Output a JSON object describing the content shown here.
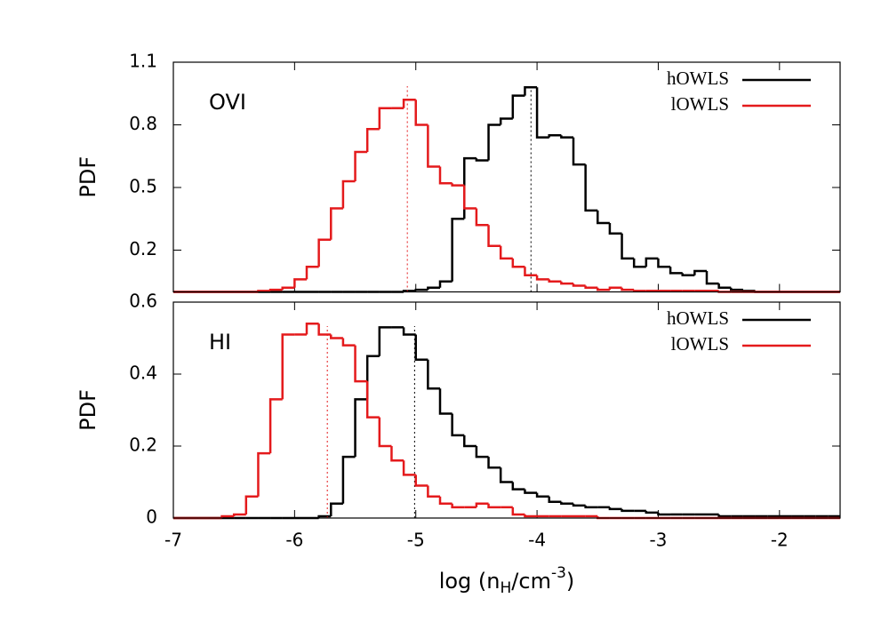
{
  "chart_data": [
    {
      "type": "histogram",
      "label": "OVI",
      "ylabel": "PDF",
      "xlim": [
        -7.0,
        -1.5
      ],
      "ylim": [
        0,
        1.1
      ],
      "yticks": [
        0.2,
        0.5,
        0.8,
        1.1
      ],
      "legend": "top right",
      "bins": [
        -7.0,
        -6.9,
        -6.8,
        -6.7,
        -6.6,
        -6.5,
        -6.4,
        -6.3,
        -6.2,
        -6.1,
        -6.0,
        -5.9,
        -5.8,
        -5.7,
        -5.6,
        -5.5,
        -5.4,
        -5.3,
        -5.2,
        -5.1,
        -5.0,
        -4.9,
        -4.8,
        -4.7,
        -4.6,
        -4.5,
        -4.4,
        -4.3,
        -4.2,
        -4.1,
        -4.0,
        -3.9,
        -3.8,
        -3.7,
        -3.6,
        -3.5,
        -3.4,
        -3.3,
        -3.2,
        -3.1,
        -3.0,
        -2.9,
        -2.8,
        -2.7,
        -2.6,
        -2.5,
        -2.4,
        -2.3,
        -2.2,
        -2.1,
        -2.0,
        -1.9,
        -1.8,
        -1.7,
        -1.6,
        -1.5
      ],
      "series": [
        {
          "name": "hOWLS",
          "color": "#000000",
          "mean": -4.05,
          "values": [
            0,
            0,
            0,
            0,
            0,
            0,
            0,
            0,
            0,
            0,
            0,
            0,
            0,
            0,
            0,
            0,
            0,
            0,
            0,
            0.005,
            0.01,
            0.02,
            0.05,
            0.35,
            0.64,
            0.63,
            0.8,
            0.83,
            0.94,
            0.98,
            0.74,
            0.75,
            0.74,
            0.61,
            0.39,
            0.33,
            0.28,
            0.16,
            0.12,
            0.16,
            0.12,
            0.09,
            0.08,
            0.1,
            0.04,
            0.02,
            0.01,
            0.005,
            0,
            0,
            0,
            0,
            0,
            0,
            0
          ]
        },
        {
          "name": "lOWLS",
          "color": "#e41a1c",
          "mean": -5.07,
          "values": [
            0,
            0,
            0,
            0,
            0,
            0,
            0,
            0.005,
            0.01,
            0.02,
            0.06,
            0.12,
            0.25,
            0.4,
            0.53,
            0.67,
            0.78,
            0.88,
            0.88,
            0.92,
            0.8,
            0.6,
            0.52,
            0.51,
            0.4,
            0.32,
            0.22,
            0.16,
            0.12,
            0.08,
            0.06,
            0.05,
            0.04,
            0.03,
            0.02,
            0.01,
            0.02,
            0.01,
            0.005,
            0.005,
            0.005,
            0.005,
            0.005,
            0.005,
            0.005,
            0,
            0,
            0,
            0,
            0,
            0,
            0,
            0,
            0,
            0
          ]
        }
      ]
    },
    {
      "type": "histogram",
      "label": "HI",
      "ylabel": "PDF",
      "xlabel": [
        "log (n",
        "H",
        "/cm",
        "-3",
        ")"
      ],
      "xlim": [
        -7.0,
        -1.5
      ],
      "xticks": [
        -7,
        -6,
        -5,
        -4,
        -3,
        -2
      ],
      "ylim": [
        0,
        0.6
      ],
      "yticks": [
        0,
        0.2,
        0.4,
        0.6
      ],
      "legend": "top right",
      "bins": [
        -7.0,
        -6.9,
        -6.8,
        -6.7,
        -6.6,
        -6.5,
        -6.4,
        -6.3,
        -6.2,
        -6.1,
        -6.0,
        -5.9,
        -5.8,
        -5.7,
        -5.6,
        -5.5,
        -5.4,
        -5.3,
        -5.2,
        -5.1,
        -5.0,
        -4.9,
        -4.8,
        -4.7,
        -4.6,
        -4.5,
        -4.4,
        -4.3,
        -4.2,
        -4.1,
        -4.0,
        -3.9,
        -3.8,
        -3.7,
        -3.6,
        -3.5,
        -3.4,
        -3.3,
        -3.2,
        -3.1,
        -3.0,
        -2.9,
        -2.8,
        -2.7,
        -2.6,
        -2.5,
        -2.4,
        -2.3,
        -2.2,
        -2.1,
        -2.0,
        -1.9,
        -1.8,
        -1.7,
        -1.6,
        -1.5
      ],
      "series": [
        {
          "name": "hOWLS",
          "color": "#000000",
          "mean": -5.01,
          "values": [
            0,
            0,
            0,
            0,
            0,
            0,
            0,
            0,
            0,
            0,
            0,
            0,
            0.005,
            0.04,
            0.17,
            0.33,
            0.45,
            0.53,
            0.53,
            0.51,
            0.44,
            0.36,
            0.29,
            0.23,
            0.2,
            0.17,
            0.14,
            0.1,
            0.08,
            0.07,
            0.06,
            0.045,
            0.04,
            0.035,
            0.03,
            0.03,
            0.025,
            0.02,
            0.02,
            0.015,
            0.01,
            0.01,
            0.01,
            0.01,
            0.01,
            0.005,
            0.005,
            0.005,
            0.005,
            0.005,
            0.005,
            0.005,
            0.005,
            0.005,
            0.005
          ]
        },
        {
          "name": "lOWLS",
          "color": "#e41a1c",
          "mean": -5.73,
          "values": [
            0,
            0,
            0,
            0,
            0.005,
            0.01,
            0.06,
            0.18,
            0.33,
            0.51,
            0.51,
            0.54,
            0.51,
            0.5,
            0.48,
            0.38,
            0.28,
            0.2,
            0.16,
            0.12,
            0.09,
            0.06,
            0.04,
            0.03,
            0.03,
            0.04,
            0.03,
            0.03,
            0.01,
            0.005,
            0.005,
            0.005,
            0.005,
            0.005,
            0.005,
            0,
            0,
            0,
            0,
            0,
            0,
            0,
            0,
            0,
            0,
            0,
            0,
            0,
            0,
            0,
            0,
            0,
            0,
            0,
            0
          ]
        }
      ]
    }
  ]
}
